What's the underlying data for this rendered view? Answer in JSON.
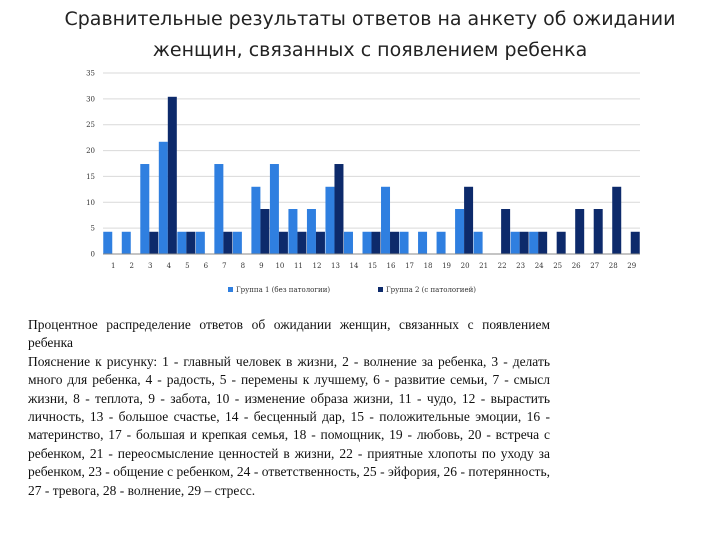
{
  "title_line1": "Сравнительные результаты ответов на анкету об ожидании",
  "title_line2": "женщин, связанных с появлением ребенка",
  "caption": "Процентное распределение ответов об ожидании женщин, связанных с появлением ребенка",
  "explanation": "Пояснение к рисунку: 1 - главный человек в жизни, 2 - волнение за ребенка, 3 - делать много для ребенка, 4 - радость, 5 - перемены к лучшему, 6 - развитие семьи, 7 - смысл жизни, 8 - теплота, 9 - забота, 10 - изменение образа жизни, 11 - чудо, 12 - вырастить личность, 13 - большое счастье, 14 - бесценный дар, 15 - положительные эмоции, 16 - материнство, 17 - большая и крепкая семья, 18 - помощник, 19 - любовь, 20 - встреча с ребенком, 21 - переосмысление ценностей в жизни, 22 - приятные хлопоты по уходу за ребенком, 23 - общение с ребенком, 24 - ответственность, 25 - эйфория, 26 - потерянность, 27 - тревога, 28 - волнение, 29 – стресс.",
  "colors": {
    "series1": "#2f7fe0",
    "series2": "#0d2a6b",
    "grid": "#d9d9d9",
    "axis": "#888888"
  },
  "chart_data": {
    "type": "bar",
    "title": "",
    "xlabel": "",
    "ylabel": "",
    "ylim": [
      0,
      35
    ],
    "yticks": [
      0,
      5,
      10,
      15,
      20,
      25,
      30,
      35
    ],
    "grid": true,
    "legend_position": "bottom",
    "categories": [
      "1",
      "2",
      "3",
      "4",
      "5",
      "6",
      "7",
      "8",
      "9",
      "10",
      "11",
      "12",
      "13",
      "14",
      "15",
      "16",
      "17",
      "18",
      "19",
      "20",
      "21",
      "22",
      "23",
      "24",
      "25",
      "26",
      "27",
      "28",
      "29"
    ],
    "series": [
      {
        "name": "Группа 1 (без патологии)",
        "values": [
          4.3,
          4.3,
          17.4,
          21.7,
          4.3,
          4.3,
          17.4,
          4.3,
          13,
          17.4,
          8.7,
          8.7,
          13,
          4.3,
          4.3,
          13,
          4.3,
          4.3,
          4.3,
          8.7,
          4.3,
          0,
          4.3,
          4.3,
          0,
          0,
          0,
          0,
          0
        ]
      },
      {
        "name": "Группа 2 (с патологией)",
        "values": [
          0,
          0,
          4.3,
          30.4,
          4.3,
          0,
          4.3,
          0,
          8.7,
          4.3,
          4.3,
          4.3,
          17.4,
          0,
          4.3,
          4.3,
          0,
          0,
          0,
          13,
          0,
          8.7,
          4.3,
          4.3,
          4.3,
          8.7,
          8.7,
          13,
          4.3
        ]
      }
    ]
  }
}
